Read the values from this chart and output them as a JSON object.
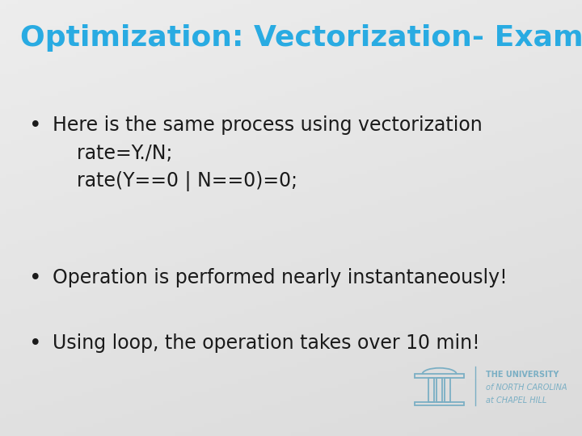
{
  "title": "Optimization: Vectorization- Example",
  "title_color": "#29ABE2",
  "title_fontsize": 26,
  "background_color": "#E8E8E8",
  "bullet_points": [
    {
      "text": "Here is the same process using vectorization\n    rate=Y./N;\n    rate(Y==0 | N==0)=0;",
      "fontsize": 17,
      "color": "#1a1a1a"
    },
    {
      "text": "Operation is performed nearly instantaneously!",
      "fontsize": 17,
      "color": "#1a1a1a"
    },
    {
      "text": "Using loop, the operation takes over 10 min!",
      "fontsize": 17,
      "color": "#1a1a1a"
    }
  ],
  "bullet_char": "•",
  "unc_text_line1": "THE UNIVERSITY",
  "unc_text_line2": "of NORTH CAROLINA",
  "unc_text_line3": "at CHAPEL HILL",
  "unc_color": "#7BAFC4",
  "footer_fontsize": 7
}
